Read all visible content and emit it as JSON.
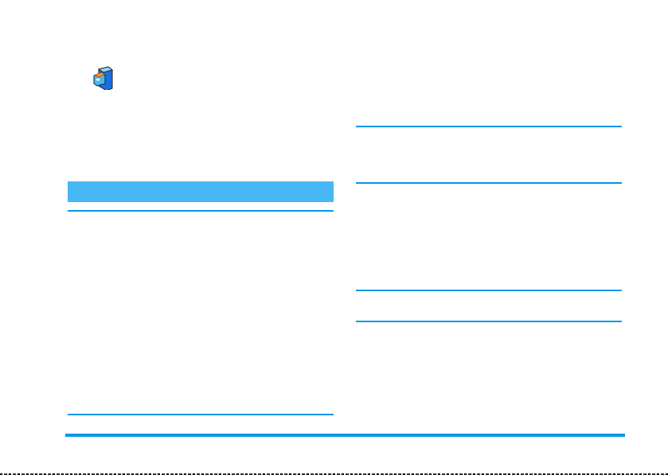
{
  "colors": {
    "header_bar": "#48b8f4",
    "rule": "#0098e8",
    "footer_rule": "#0098e8"
  },
  "icons": {
    "section_icon": "file-cabinet-icon"
  }
}
